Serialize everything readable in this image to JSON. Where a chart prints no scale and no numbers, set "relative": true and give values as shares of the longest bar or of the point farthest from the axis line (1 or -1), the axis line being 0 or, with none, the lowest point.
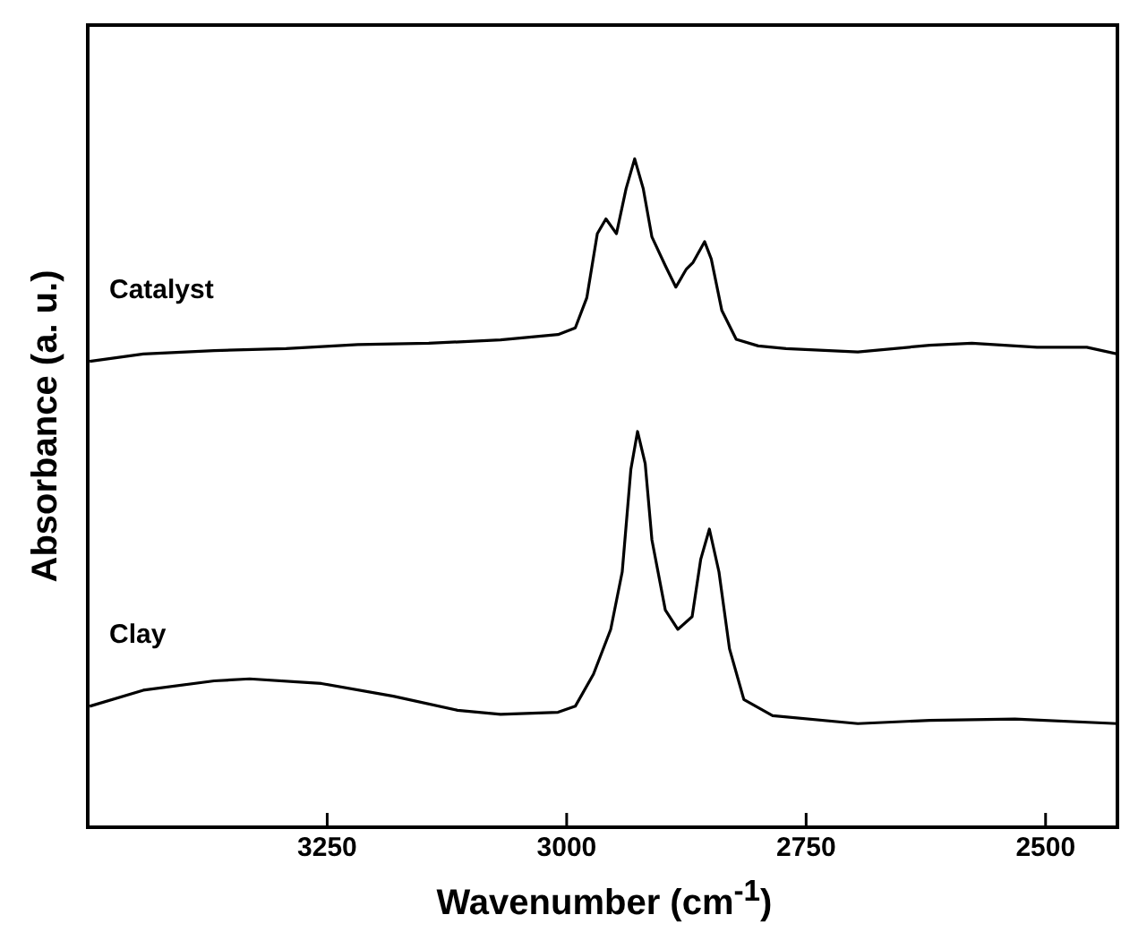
{
  "chart_data": {
    "type": "line",
    "xlabel": "Wavenumber (cm$^{-1}$)",
    "ylabel": "Absorbance (a. u.)",
    "relative": true,
    "xlim": [
      3500,
      2425
    ],
    "xticks": [
      3250,
      3000,
      2750,
      2500
    ],
    "grid": false,
    "legend": false,
    "marker": "none",
    "line_style": "solid",
    "series": [
      {
        "name": "Catalyst",
        "color": "#000000",
        "x": [
          3498,
          3442,
          3368,
          3293,
          3218,
          3144,
          3069,
          3009,
          2991,
          2979,
          2968,
          2959,
          2948,
          2938,
          2929,
          2920,
          2911,
          2897,
          2886,
          2875,
          2868,
          2856,
          2849,
          2838,
          2823,
          2800,
          2771,
          2696,
          2621,
          2577,
          2509,
          2457,
          2425
        ],
        "values": [
          0.697,
          0.708,
          0.713,
          0.716,
          0.722,
          0.724,
          0.729,
          0.737,
          0.747,
          0.792,
          0.888,
          0.91,
          0.888,
          0.955,
          1.0,
          0.955,
          0.883,
          0.84,
          0.808,
          0.835,
          0.845,
          0.876,
          0.85,
          0.773,
          0.73,
          0.72,
          0.716,
          0.711,
          0.721,
          0.724,
          0.718,
          0.718,
          0.708
        ]
      },
      {
        "name": "Clay",
        "color": "#000000",
        "x": [
          3498,
          3442,
          3368,
          3331,
          3256,
          3181,
          3114,
          3069,
          3009,
          2991,
          2972,
          2954,
          2942,
          2933,
          2926,
          2918,
          2911,
          2897,
          2884,
          2869,
          2860,
          2851,
          2841,
          2830,
          2815,
          2785,
          2696,
          2621,
          2532,
          2425
        ],
        "values": [
          0.181,
          0.205,
          0.219,
          0.222,
          0.215,
          0.196,
          0.175,
          0.169,
          0.172,
          0.181,
          0.229,
          0.296,
          0.382,
          0.535,
          0.592,
          0.544,
          0.43,
          0.325,
          0.296,
          0.315,
          0.401,
          0.446,
          0.382,
          0.267,
          0.191,
          0.167,
          0.155,
          0.16,
          0.162,
          0.155
        ]
      }
    ]
  }
}
